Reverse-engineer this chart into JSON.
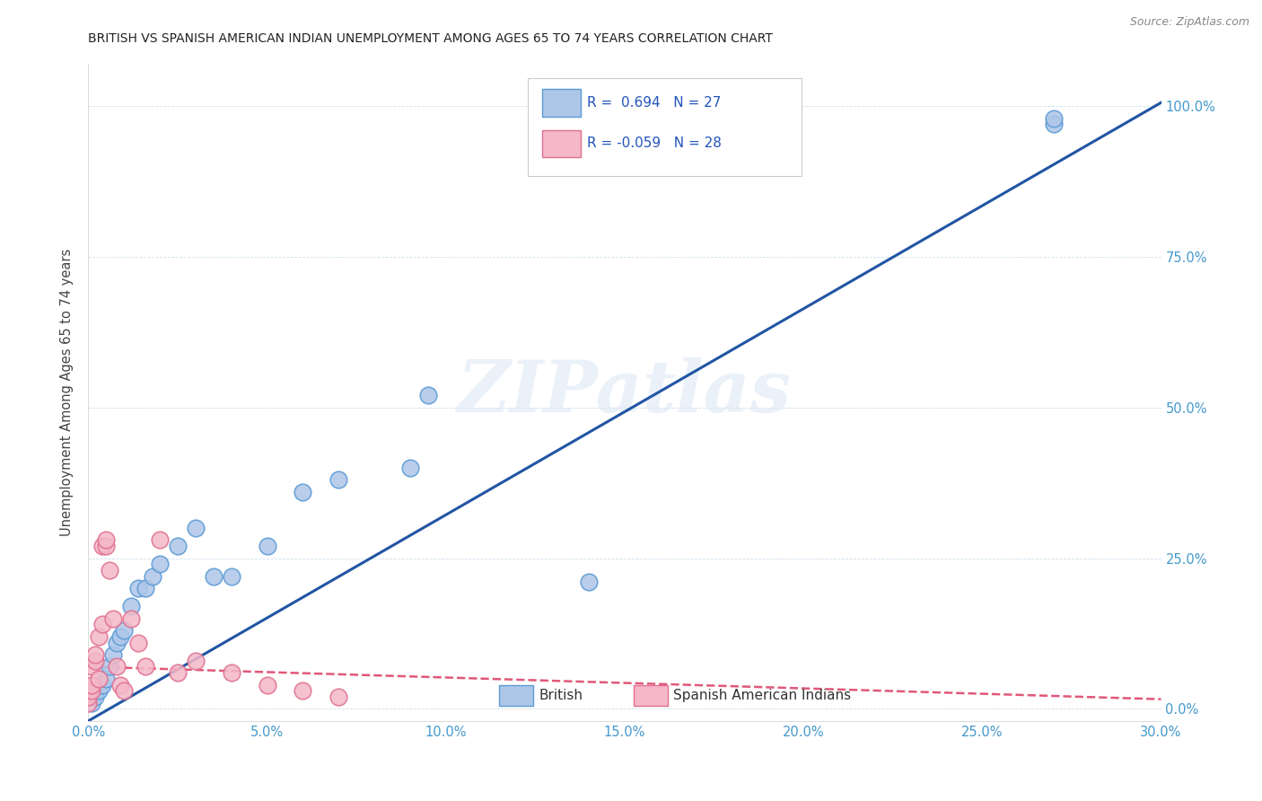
{
  "title": "BRITISH VS SPANISH AMERICAN INDIAN UNEMPLOYMENT AMONG AGES 65 TO 74 YEARS CORRELATION CHART",
  "source": "Source: ZipAtlas.com",
  "ylabel": "Unemployment Among Ages 65 to 74 years",
  "xlim": [
    0.0,
    0.3
  ],
  "ylim": [
    -0.02,
    1.07
  ],
  "xtick_labels": [
    "0.0%",
    "",
    "5.0%",
    "",
    "10.0%",
    "",
    "15.0%",
    "",
    "20.0%",
    "",
    "25.0%",
    "",
    "30.0%"
  ],
  "xtick_values": [
    0.0,
    0.025,
    0.05,
    0.075,
    0.1,
    0.125,
    0.15,
    0.175,
    0.2,
    0.225,
    0.25,
    0.275,
    0.3
  ],
  "ytick_labels": [
    "0.0%",
    "25.0%",
    "50.0%",
    "75.0%",
    "100.0%"
  ],
  "ytick_values": [
    0.0,
    0.25,
    0.5,
    0.75,
    1.0
  ],
  "british_R": 0.694,
  "british_N": 27,
  "spanish_R": -0.059,
  "spanish_N": 28,
  "british_color": "#aec6e8",
  "british_edge_color": "#5b9bd5",
  "british_line_color": "#2155a3",
  "spanish_color": "#f4b8c8",
  "spanish_edge_color": "#e07090",
  "spanish_line_color": "#e05878",
  "watermark": "ZIPatlas",
  "british_x": [
    0.001,
    0.002,
    0.003,
    0.004,
    0.005,
    0.006,
    0.007,
    0.008,
    0.009,
    0.01,
    0.012,
    0.014,
    0.016,
    0.018,
    0.02,
    0.025,
    0.03,
    0.035,
    0.04,
    0.05,
    0.06,
    0.07,
    0.09,
    0.095,
    0.14,
    0.27,
    0.27
  ],
  "british_y": [
    0.01,
    0.02,
    0.03,
    0.04,
    0.05,
    0.07,
    0.09,
    0.11,
    0.12,
    0.13,
    0.17,
    0.2,
    0.2,
    0.22,
    0.24,
    0.27,
    0.3,
    0.22,
    0.22,
    0.27,
    0.36,
    0.38,
    0.4,
    0.52,
    0.21,
    0.97,
    0.98
  ],
  "spanish_x": [
    0.0,
    0.0,
    0.001,
    0.001,
    0.001,
    0.002,
    0.002,
    0.003,
    0.003,
    0.004,
    0.004,
    0.005,
    0.005,
    0.006,
    0.007,
    0.008,
    0.009,
    0.01,
    0.012,
    0.014,
    0.016,
    0.02,
    0.025,
    0.03,
    0.04,
    0.05,
    0.06,
    0.07
  ],
  "spanish_y": [
    0.01,
    0.02,
    0.03,
    0.04,
    0.07,
    0.08,
    0.09,
    0.05,
    0.12,
    0.14,
    0.27,
    0.27,
    0.28,
    0.23,
    0.15,
    0.07,
    0.04,
    0.03,
    0.15,
    0.11,
    0.07,
    0.28,
    0.06,
    0.08,
    0.06,
    0.04,
    0.03,
    0.02
  ],
  "brit_reg_slope": 3.42,
  "brit_reg_intercept": -0.02,
  "sp_reg_slope": -0.18,
  "sp_reg_intercept": 0.07
}
